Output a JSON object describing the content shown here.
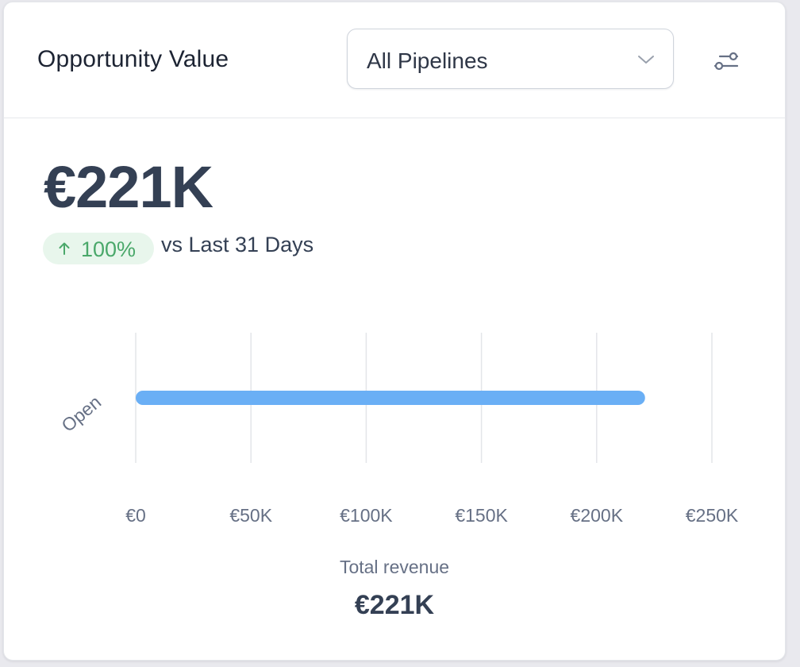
{
  "widget": {
    "title": "Opportunity Value",
    "pipeline_select": {
      "value": "All Pipelines"
    },
    "filter_icon": "sliders-icon",
    "summary": {
      "value": "€221K",
      "change": "100%",
      "change_direction": "up",
      "compare_text": "vs Last 31 Days"
    },
    "total": {
      "label": "Total revenue",
      "value": "€221K"
    }
  },
  "colors": {
    "bar": "#6aaff5",
    "badge_bg": "#e8f6ec",
    "badge_text": "#4aa86a",
    "grid": "#e3e5e9"
  },
  "chart_data": {
    "type": "bar",
    "orientation": "horizontal",
    "categories": [
      "Open"
    ],
    "values": [
      221000
    ],
    "xlim": [
      0,
      250000
    ],
    "x_ticks": [
      0,
      50000,
      100000,
      150000,
      200000,
      250000
    ],
    "x_tick_labels": [
      "€0",
      "€50K",
      "€100K",
      "€150K",
      "€200K",
      "€250K"
    ],
    "grid": true
  }
}
